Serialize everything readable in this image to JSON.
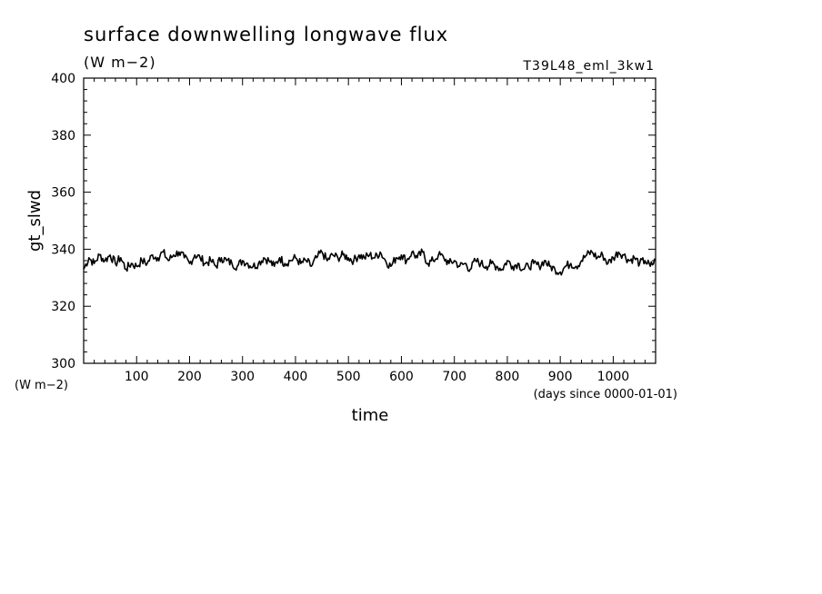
{
  "chart_data": {
    "type": "line",
    "title": "surface downwelling longwave flux",
    "subtitle": "(W m−2)",
    "run_label": "T39L48_eml_3kw1",
    "xlabel": "time",
    "x_units": "(days since 0000-01-01)",
    "ylabel": "gt_slwd",
    "y_units": "(W m−2)",
    "xlim": [
      0,
      1080
    ],
    "ylim": [
      300,
      400
    ],
    "x_ticks": [
      100,
      200,
      300,
      400,
      500,
      600,
      700,
      800,
      900,
      1000
    ],
    "x_tick_labels": [
      "100",
      "200",
      "300",
      "400",
      "500",
      "600",
      "700",
      "800",
      "900",
      "1000"
    ],
    "y_ticks": [
      300,
      320,
      340,
      360,
      380,
      400
    ],
    "y_tick_labels": [
      "300",
      "320",
      "340",
      "360",
      "380",
      "400"
    ],
    "grid": false,
    "line_color": "#000000",
    "series": [
      {
        "x": [
          0,
          10,
          20,
          30,
          40,
          50,
          60,
          70,
          80,
          90,
          100,
          110,
          120,
          130,
          140,
          150,
          160,
          170,
          180,
          190,
          200,
          210,
          220,
          230,
          240,
          250,
          260,
          270,
          280,
          290,
          300,
          310,
          320,
          330,
          340,
          350,
          360,
          370,
          380,
          390,
          400,
          410,
          420,
          430,
          440,
          450,
          460,
          470,
          480,
          490,
          500,
          510,
          520,
          530,
          540,
          550,
          560,
          570,
          580,
          590,
          600,
          610,
          620,
          630,
          640,
          650,
          660,
          670,
          680,
          690,
          700,
          710,
          720,
          730,
          740,
          750,
          760,
          770,
          780,
          790,
          800,
          810,
          820,
          830,
          840,
          850,
          860,
          870,
          880,
          890,
          900,
          910,
          920,
          930,
          940,
          950,
          960,
          970,
          980,
          990,
          1000,
          1010,
          1020,
          1030,
          1040,
          1050,
          1060,
          1070,
          1080
        ],
        "values": [
          333,
          337,
          335,
          338,
          336,
          338,
          335,
          337,
          333,
          335,
          334,
          336,
          335,
          338,
          337,
          339,
          336,
          338,
          339,
          337,
          335,
          338,
          337,
          335,
          336,
          334,
          337,
          336,
          335,
          334,
          336,
          335,
          334,
          335,
          337,
          336,
          334,
          337,
          335,
          336,
          337,
          335,
          336,
          334,
          337,
          339,
          336,
          338,
          337,
          338,
          337,
          336,
          338,
          337,
          338,
          337,
          339,
          336,
          334,
          337,
          338,
          336,
          339,
          337,
          339,
          335,
          336,
          338,
          337,
          335,
          336,
          334,
          335,
          333,
          336,
          335,
          334,
          335,
          334,
          333,
          336,
          334,
          335,
          333,
          334,
          335,
          334,
          336,
          334,
          333,
          332,
          334,
          335,
          334,
          336,
          338,
          339,
          337,
          338,
          335,
          337,
          339,
          338,
          336,
          337,
          335,
          336,
          334,
          336
        ]
      }
    ]
  }
}
